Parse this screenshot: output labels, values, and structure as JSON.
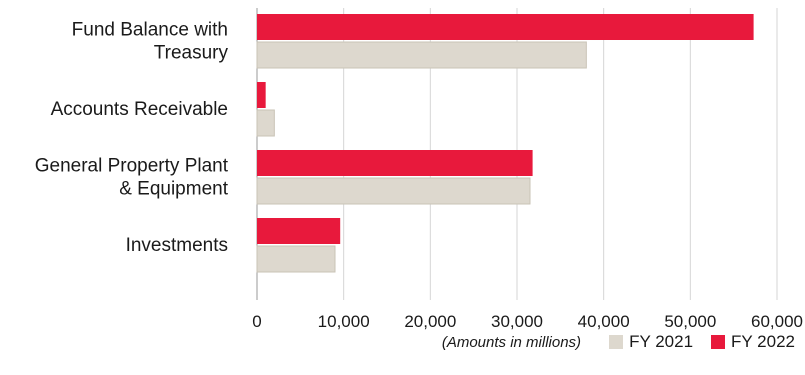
{
  "chart_data": {
    "type": "bar",
    "orientation": "horizontal",
    "categories": [
      [
        "Fund Balance with",
        "Treasury"
      ],
      [
        "Accounts Receivable"
      ],
      [
        "General Property Plant",
        "& Equipment"
      ],
      [
        "Investments"
      ]
    ],
    "series": [
      {
        "name": "FY 2022",
        "color": "#e8193c",
        "values": [
          57300,
          1000,
          31800,
          9600
        ]
      },
      {
        "name": "FY 2021",
        "color": "#ddd8ce",
        "values": [
          38000,
          2000,
          31500,
          9000
        ]
      }
    ],
    "xlim": [
      0,
      60000
    ],
    "xticks": [
      "0",
      "10,000",
      "20,000",
      "30,000",
      "40,000",
      "50,000",
      "60,000"
    ],
    "grid": true,
    "legend": {
      "position": "bottom-right",
      "note": "(Amounts in millions)",
      "entries": [
        {
          "label": "FY 2021",
          "color": "#ddd8ce"
        },
        {
          "label": "FY 2022",
          "color": "#e8193c"
        }
      ]
    }
  }
}
